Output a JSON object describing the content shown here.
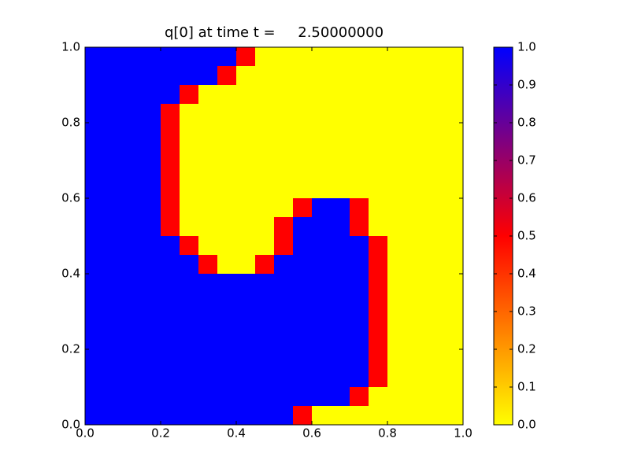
{
  "chart_data": {
    "type": "heatmap",
    "title": "q[0] at time t =     2.50000000",
    "xlim": [
      0,
      1
    ],
    "ylim": [
      0,
      1
    ],
    "xticks": [
      {
        "value": 0,
        "label": "0.0"
      },
      {
        "value": 0.2,
        "label": "0.2"
      },
      {
        "value": 0.4,
        "label": "0.4"
      },
      {
        "value": 0.6,
        "label": "0.6"
      },
      {
        "value": 0.8,
        "label": "0.8"
      },
      {
        "value": 1,
        "label": "1.0"
      }
    ],
    "yticks": [
      {
        "value": 0,
        "label": "0.0"
      },
      {
        "value": 0.2,
        "label": "0.2"
      },
      {
        "value": 0.4,
        "label": "0.4"
      },
      {
        "value": 0.6,
        "label": "0.6"
      },
      {
        "value": 0.8,
        "label": "0.8"
      },
      {
        "value": 1,
        "label": "1.0"
      }
    ],
    "colorbar": {
      "lim": [
        0,
        1
      ],
      "ticks": [
        {
          "value": 0,
          "label": "0.0"
        },
        {
          "value": 0.1,
          "label": "0.1"
        },
        {
          "value": 0.2,
          "label": "0.2"
        },
        {
          "value": 0.3,
          "label": "0.3"
        },
        {
          "value": 0.4,
          "label": "0.4"
        },
        {
          "value": 0.5,
          "label": "0.5"
        },
        {
          "value": 0.6,
          "label": "0.6"
        },
        {
          "value": 0.7,
          "label": "0.7"
        },
        {
          "value": 0.8,
          "label": "0.8"
        },
        {
          "value": 0.9,
          "label": "0.9"
        },
        {
          "value": 1,
          "label": "1.0"
        }
      ]
    },
    "colormap": [
      {
        "value": 0,
        "color": "#ffff00"
      },
      {
        "value": 0.5,
        "color": "#ff0000"
      },
      {
        "value": 1,
        "color": "#0000ff"
      }
    ],
    "values": [
      [
        1,
        1,
        1,
        1,
        1,
        1,
        1,
        1,
        0.5,
        0,
        0,
        0,
        0,
        0,
        0,
        0,
        0,
        0,
        0,
        0
      ],
      [
        1,
        1,
        1,
        1,
        1,
        1,
        1,
        0.5,
        0,
        0,
        0,
        0,
        0,
        0,
        0,
        0,
        0,
        0,
        0,
        0
      ],
      [
        1,
        1,
        1,
        1,
        1,
        0.5,
        0,
        0,
        0,
        0,
        0,
        0,
        0,
        0,
        0,
        0,
        0,
        0,
        0,
        0
      ],
      [
        1,
        1,
        1,
        1,
        0.5,
        0,
        0,
        0,
        0,
        0,
        0,
        0,
        0,
        0,
        0,
        0,
        0,
        0,
        0,
        0
      ],
      [
        1,
        1,
        1,
        1,
        0.5,
        0,
        0,
        0,
        0,
        0,
        0,
        0,
        0,
        0,
        0,
        0,
        0,
        0,
        0,
        0
      ],
      [
        1,
        1,
        1,
        1,
        0.5,
        0,
        0,
        0,
        0,
        0,
        0,
        0,
        0,
        0,
        0,
        0,
        0,
        0,
        0,
        0
      ],
      [
        1,
        1,
        1,
        1,
        0.5,
        0,
        0,
        0,
        0,
        0,
        0,
        0,
        0,
        0,
        0,
        0,
        0,
        0,
        0,
        0
      ],
      [
        1,
        1,
        1,
        1,
        0.5,
        0,
        0,
        0,
        0,
        0,
        0,
        0,
        0,
        0,
        0,
        0,
        0,
        0,
        0,
        0
      ],
      [
        1,
        1,
        1,
        1,
        0.5,
        0,
        0,
        0,
        0,
        0,
        0,
        0.5,
        1,
        1,
        0.5,
        0,
        0,
        0,
        0,
        0
      ],
      [
        1,
        1,
        1,
        1,
        0.5,
        0,
        0,
        0,
        0,
        0,
        0.5,
        1,
        1,
        1,
        0.5,
        0,
        0,
        0,
        0,
        0
      ],
      [
        1,
        1,
        1,
        1,
        1,
        0.5,
        0,
        0,
        0,
        0,
        0.5,
        1,
        1,
        1,
        1,
        0.5,
        0,
        0,
        0,
        0
      ],
      [
        1,
        1,
        1,
        1,
        1,
        1,
        0.5,
        0,
        0,
        0.5,
        1,
        1,
        1,
        1,
        1,
        0.5,
        0,
        0,
        0,
        0
      ],
      [
        1,
        1,
        1,
        1,
        1,
        1,
        1,
        1,
        1,
        1,
        1,
        1,
        1,
        1,
        1,
        0.5,
        0,
        0,
        0,
        0
      ],
      [
        1,
        1,
        1,
        1,
        1,
        1,
        1,
        1,
        1,
        1,
        1,
        1,
        1,
        1,
        1,
        0.5,
        0,
        0,
        0,
        0
      ],
      [
        1,
        1,
        1,
        1,
        1,
        1,
        1,
        1,
        1,
        1,
        1,
        1,
        1,
        1,
        1,
        0.5,
        0,
        0,
        0,
        0
      ],
      [
        1,
        1,
        1,
        1,
        1,
        1,
        1,
        1,
        1,
        1,
        1,
        1,
        1,
        1,
        1,
        0.5,
        0,
        0,
        0,
        0
      ],
      [
        1,
        1,
        1,
        1,
        1,
        1,
        1,
        1,
        1,
        1,
        1,
        1,
        1,
        1,
        1,
        0.5,
        0,
        0,
        0,
        0
      ],
      [
        1,
        1,
        1,
        1,
        1,
        1,
        1,
        1,
        1,
        1,
        1,
        1,
        1,
        1,
        1,
        0.5,
        0,
        0,
        0,
        0
      ],
      [
        1,
        1,
        1,
        1,
        1,
        1,
        1,
        1,
        1,
        1,
        1,
        1,
        1,
        1,
        0.5,
        0,
        0,
        0,
        0,
        0
      ],
      [
        1,
        1,
        1,
        1,
        1,
        1,
        1,
        1,
        1,
        1,
        1,
        0.5,
        0,
        0,
        0,
        0,
        0,
        0,
        0,
        0
      ]
    ]
  }
}
